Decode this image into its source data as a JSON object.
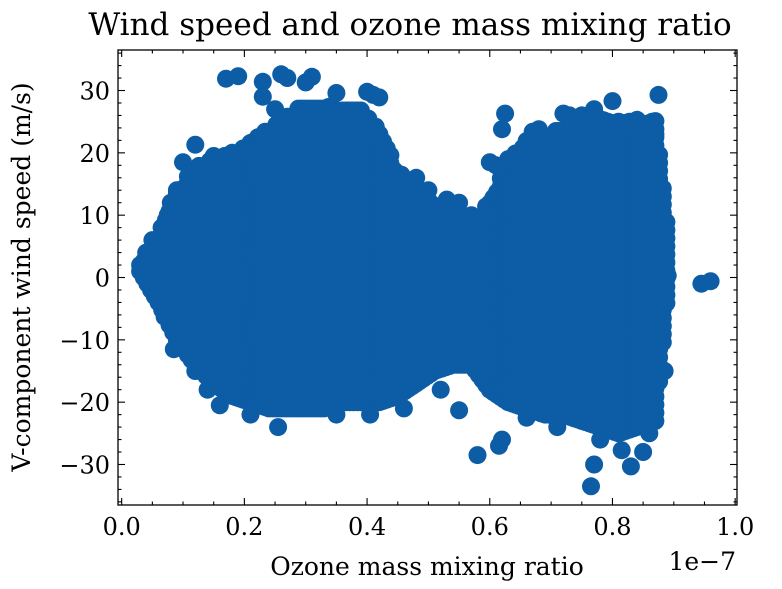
{
  "chart_data": {
    "type": "scatter",
    "title": "Wind speed and ozone mass mixing ratio",
    "xlabel": "Ozone mass mixing ratio",
    "ylabel": "V-component wind speed (m/s)",
    "x_offset_label": "1e−7",
    "x_scale_factor": 1e-07,
    "xlim": [
      -0.006,
      1.003
    ],
    "ylim": [
      -36.5,
      36.5
    ],
    "x_ticks": [
      0.0,
      0.2,
      0.4,
      0.6,
      0.8,
      1.0
    ],
    "x_tick_labels": [
      "0.0",
      "0.2",
      "0.4",
      "0.6",
      "0.8",
      "1.0"
    ],
    "y_ticks": [
      -30,
      -20,
      -10,
      0,
      10,
      20,
      30
    ],
    "y_tick_labels": [
      "−30",
      "−20",
      "−10",
      "0",
      "10",
      "20",
      "30"
    ],
    "grid": false,
    "marker_color": "#0C5DA5",
    "series": [
      {
        "name": "",
        "points": [
          [
            0.03,
            2
          ],
          [
            0.04,
            4
          ],
          [
            0.045,
            0.5
          ],
          [
            0.05,
            6
          ],
          [
            0.06,
            -2
          ],
          [
            0.065,
            8
          ],
          [
            0.07,
            -6.3
          ],
          [
            0.075,
            10
          ],
          [
            0.08,
            12
          ],
          [
            0.085,
            -11.5
          ],
          [
            0.09,
            14
          ],
          [
            0.1,
            18.5
          ],
          [
            0.1,
            -9
          ],
          [
            0.12,
            21.3
          ],
          [
            0.12,
            -15
          ],
          [
            0.14,
            -18
          ],
          [
            0.15,
            19.5
          ],
          [
            0.16,
            -20.5
          ],
          [
            0.17,
            31.9
          ],
          [
            0.19,
            32.3
          ],
          [
            0.2,
            20
          ],
          [
            0.21,
            -22
          ],
          [
            0.23,
            31.4
          ],
          [
            0.23,
            29
          ],
          [
            0.24,
            -19
          ],
          [
            0.25,
            27
          ],
          [
            0.255,
            -24
          ],
          [
            0.26,
            32.6
          ],
          [
            0.27,
            32
          ],
          [
            0.3,
            31.3
          ],
          [
            0.31,
            32.2
          ],
          [
            0.33,
            26
          ],
          [
            0.35,
            29.6
          ],
          [
            0.35,
            -22
          ],
          [
            0.36,
            26
          ],
          [
            0.4,
            29.8
          ],
          [
            0.405,
            -22
          ],
          [
            0.41,
            29.3
          ],
          [
            0.42,
            28.9
          ],
          [
            0.42,
            23
          ],
          [
            0.45,
            16.7
          ],
          [
            0.46,
            -21
          ],
          [
            0.48,
            16
          ],
          [
            0.5,
            14
          ],
          [
            0.52,
            -18
          ],
          [
            0.53,
            12.5
          ],
          [
            0.55,
            12
          ],
          [
            0.55,
            -21.3
          ],
          [
            0.57,
            10
          ],
          [
            0.58,
            -28.5
          ],
          [
            0.6,
            18.5
          ],
          [
            0.61,
            18
          ],
          [
            0.615,
            -27
          ],
          [
            0.62,
            23.8
          ],
          [
            0.625,
            26.3
          ],
          [
            0.62,
            -26
          ],
          [
            0.65,
            17
          ],
          [
            0.66,
            -22.5
          ],
          [
            0.67,
            23.4
          ],
          [
            0.68,
            23.8
          ],
          [
            0.69,
            17
          ],
          [
            0.7,
            18
          ],
          [
            0.71,
            -24
          ],
          [
            0.72,
            26.3
          ],
          [
            0.73,
            26
          ],
          [
            0.74,
            25.5
          ],
          [
            0.75,
            26
          ],
          [
            0.77,
            27
          ],
          [
            0.765,
            -33.5
          ],
          [
            0.77,
            -30
          ],
          [
            0.78,
            -26
          ],
          [
            0.79,
            -24
          ],
          [
            0.8,
            28.3
          ],
          [
            0.81,
            25
          ],
          [
            0.815,
            -27.7
          ],
          [
            0.83,
            24
          ],
          [
            0.83,
            -30.3
          ],
          [
            0.84,
            25.3
          ],
          [
            0.85,
            -28
          ],
          [
            0.86,
            -25
          ],
          [
            0.865,
            25
          ],
          [
            0.87,
            23
          ],
          [
            0.875,
            29.3
          ],
          [
            0.88,
            10
          ],
          [
            0.885,
            -15
          ],
          [
            0.89,
            0.3
          ],
          [
            0.945,
            -1
          ],
          [
            0.96,
            -0.6
          ]
        ]
      }
    ],
    "dense_envelope": {
      "x": [
        0.03,
        0.06,
        0.09,
        0.12,
        0.15,
        0.18,
        0.21,
        0.24,
        0.27,
        0.3,
        0.33,
        0.36,
        0.39,
        0.42,
        0.45,
        0.48,
        0.51,
        0.54,
        0.57,
        0.6,
        0.63,
        0.66,
        0.69,
        0.72,
        0.75,
        0.78,
        0.81,
        0.84,
        0.87,
        0.89
      ],
      "upper": [
        2,
        6,
        14,
        18,
        19,
        20,
        22,
        24,
        26,
        28,
        28,
        27,
        27,
        24,
        17,
        15,
        12,
        10,
        9,
        12,
        19,
        22,
        23,
        24,
        25,
        26,
        25,
        25,
        26,
        8
      ],
      "lower": [
        1,
        -4,
        -10,
        -14,
        -17,
        -19,
        -20,
        -21,
        -21,
        -21,
        -21,
        -20,
        -20,
        -20,
        -19,
        -17,
        -15,
        -14,
        -14,
        -18,
        -20,
        -21,
        -22,
        -22,
        -23,
        -24,
        -25,
        -24,
        -23,
        -2
      ]
    }
  }
}
